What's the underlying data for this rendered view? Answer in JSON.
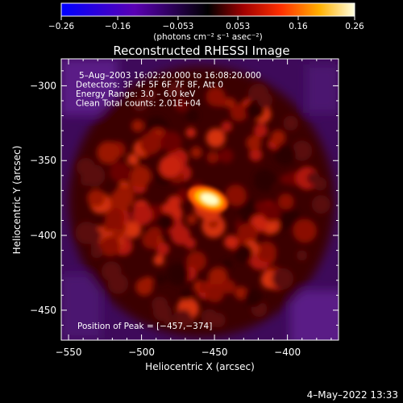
{
  "chart_data": {
    "type": "heatmap",
    "title": "Reconstructed RHESSI Image",
    "xlabel": "Heliocentric X (arcsec)",
    "ylabel": "Heliocentric Y (arcsec)",
    "xlim": [
      -555,
      -365
    ],
    "ylim": [
      -470,
      -282
    ],
    "x_ticks": [
      -550,
      -500,
      -450,
      -400
    ],
    "y_ticks": [
      -300,
      -350,
      -400,
      -450
    ],
    "x_tick_labels": [
      "−550",
      "−500",
      "−450",
      "−400"
    ],
    "y_tick_labels": [
      "−300",
      "−350",
      "−400",
      "−450"
    ],
    "colorbar": {
      "min": -0.26,
      "max": 0.26,
      "ticks": [
        -0.26,
        -0.16,
        -0.053,
        0.053,
        0.16,
        0.26
      ],
      "tick_labels": [
        "−0.26",
        "−0.16",
        "−0.053",
        "0.053",
        "0.16",
        "0.26"
      ],
      "label": "(photons cm⁻² s⁻¹ asec⁻²)"
    },
    "annotations": [
      "5–Aug–2003 16:02:20.000 to 16:08:20.000",
      "Detectors: 3F 4F 5F 6F 7F 8F, Att 0",
      "Energy Range: 3.0 – 6.0 keV",
      "Clean     Total counts: 2.01E+04"
    ],
    "peak": {
      "x": -457,
      "y": -374,
      "label": "Position of Peak = [−457,−374]"
    },
    "footer_timestamp": "4–May–2022 13:33"
  }
}
